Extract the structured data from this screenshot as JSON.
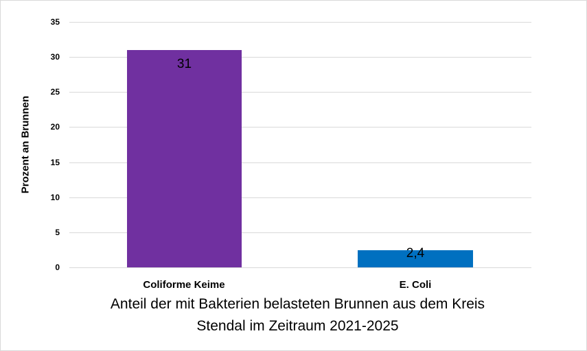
{
  "chart_data": {
    "type": "bar",
    "title": "",
    "xlabel": "Anteil der mit Bakterien belasteten Brunnen aus dem Kreis Stendal im Zeitraum 2021-2025",
    "xlabel_lines": [
      "Anteil der mit Bakterien belasteten Brunnen aus dem Kreis",
      "Stendal im Zeitraum 2021-2025"
    ],
    "ylabel": "Prozent an Brunnen",
    "categories": [
      "Coliforme Keime",
      "E. Coli"
    ],
    "values": [
      31,
      2.4
    ],
    "data_labels": [
      "31",
      "2,4"
    ],
    "colors": [
      "#7030a0",
      "#0070c0"
    ],
    "ylim": [
      0,
      35
    ],
    "yticks": [
      "0",
      "5",
      "10",
      "15",
      "20",
      "25",
      "30",
      "35"
    ],
    "grid": true,
    "legend": "none"
  }
}
